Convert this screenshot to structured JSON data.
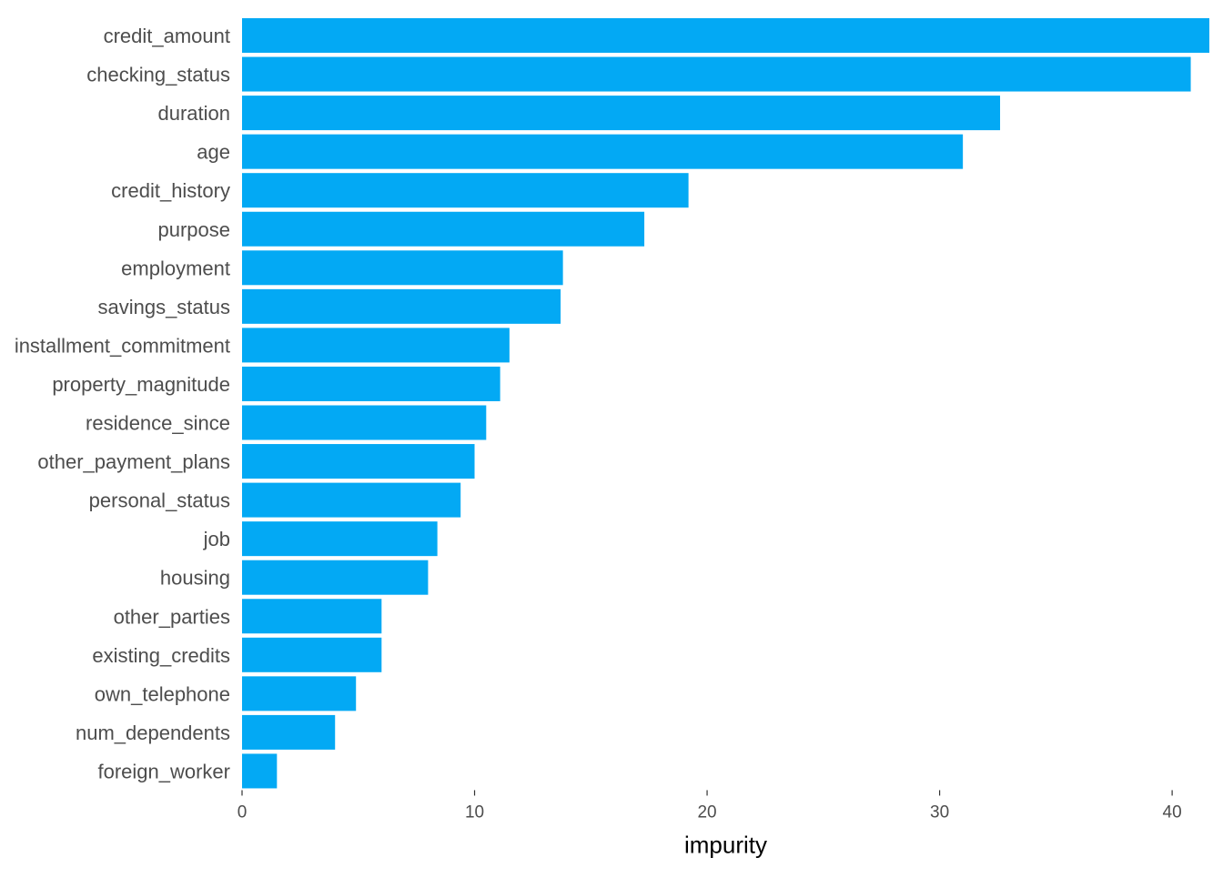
{
  "chart_data": {
    "type": "bar",
    "orientation": "horizontal",
    "categories": [
      "credit_amount",
      "checking_status",
      "duration",
      "age",
      "credit_history",
      "purpose",
      "employment",
      "savings_status",
      "installment_commitment",
      "property_magnitude",
      "residence_since",
      "other_payment_plans",
      "personal_status",
      "job",
      "housing",
      "other_parties",
      "existing_credits",
      "own_telephone",
      "num_dependents",
      "foreign_worker"
    ],
    "values": [
      41.6,
      40.8,
      32.6,
      31.0,
      19.2,
      17.3,
      13.8,
      13.7,
      11.5,
      11.1,
      10.5,
      10.0,
      9.4,
      8.4,
      8.0,
      6.0,
      6.0,
      4.9,
      4.0,
      1.5
    ],
    "xlabel": "impurity",
    "ylabel": "",
    "xlim": [
      0,
      41.6
    ],
    "x_ticks": [
      0,
      10,
      20,
      30,
      40
    ],
    "grid": false,
    "bar_color": "#03A9F4"
  }
}
